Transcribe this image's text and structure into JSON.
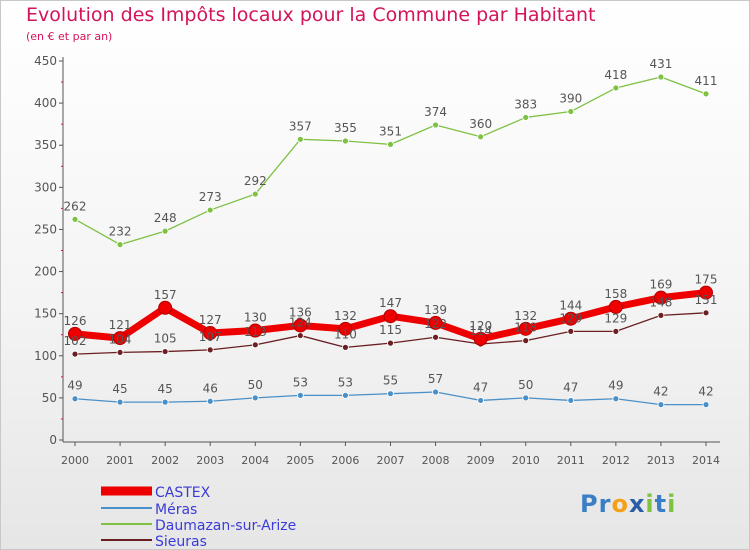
{
  "title": "Evolution des Impôts locaux pour la Commune par Habitant",
  "subtitle": "(en € et par an)",
  "logo": {
    "text": "Proxiti",
    "letters": [
      {
        "ch": "P",
        "color": "#3a7fc6"
      },
      {
        "ch": "r",
        "color": "#3a7fc6"
      },
      {
        "ch": "o",
        "color": "#f5a01a"
      },
      {
        "ch": "x",
        "color": "#2a5fa8"
      },
      {
        "ch": "i",
        "color": "#7ec143"
      },
      {
        "ch": "t",
        "color": "#3a7fc6"
      },
      {
        "ch": "i",
        "color": "#7ec143"
      }
    ]
  },
  "chart_data": {
    "type": "line",
    "x": [
      "2000",
      "2001",
      "2002",
      "2003",
      "2004",
      "2005",
      "2006",
      "2007",
      "2008",
      "2009",
      "2010",
      "2011",
      "2012",
      "2013",
      "2014"
    ],
    "ylim": [
      0,
      450
    ],
    "yticks": [
      0,
      50,
      100,
      150,
      200,
      250,
      300,
      350,
      400,
      450
    ],
    "grid": false,
    "legend": "bottom-left",
    "series": [
      {
        "name": "CASTEX",
        "color": "#ee0000",
        "emphasis": true,
        "values": [
          126,
          121,
          157,
          127,
          130,
          136,
          132,
          147,
          139,
          120,
          132,
          144,
          158,
          169,
          175
        ]
      },
      {
        "name": "Méras",
        "color": "#4a90c8",
        "values": [
          49,
          45,
          45,
          46,
          50,
          53,
          53,
          55,
          57,
          47,
          50,
          47,
          49,
          42,
          42
        ]
      },
      {
        "name": "Daumazan-sur-Arize",
        "color": "#7ec143",
        "values": [
          262,
          232,
          248,
          273,
          292,
          357,
          355,
          351,
          374,
          360,
          383,
          390,
          418,
          431,
          411
        ]
      },
      {
        "name": "Sieuras",
        "color": "#6b1f22",
        "values": [
          102,
          104,
          105,
          107,
          113,
          124,
          110,
          115,
          122,
          114,
          118,
          129,
          129,
          148,
          151
        ]
      }
    ]
  }
}
